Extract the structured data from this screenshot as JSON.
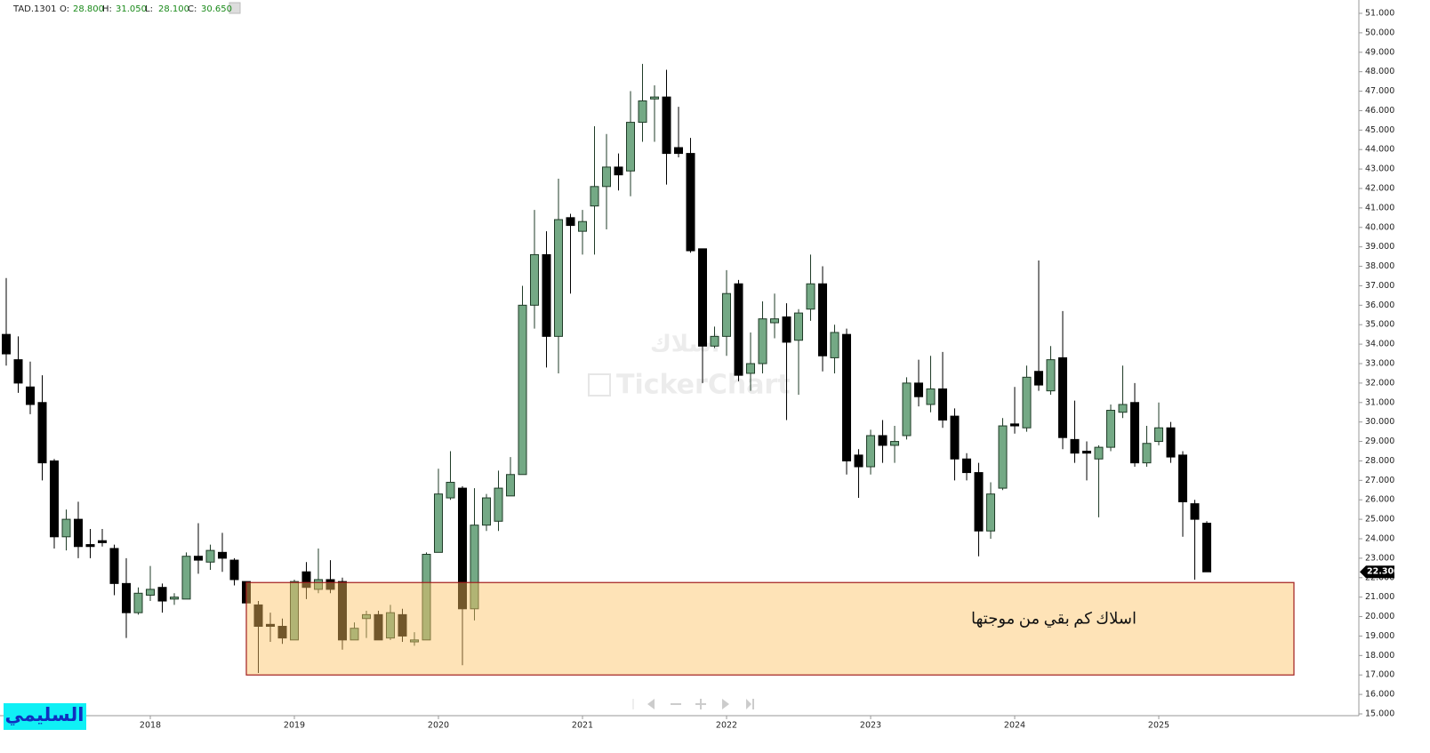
{
  "chart_data": {
    "type": "candlestick",
    "symbol": "TAD.1301",
    "ohlc_header": [
      {
        "name": "O:",
        "value": 28.8,
        "label": "28.800"
      },
      {
        "name": "H:",
        "value": 31.05,
        "label": "31.050"
      },
      {
        "name": "L:",
        "value": 28.1,
        "label": "28.100"
      },
      {
        "name": "C:",
        "value": 30.65,
        "label": "30.650"
      }
    ],
    "watermark_name": "اسلاك",
    "watermark": "TickerChart",
    "logo": "السليمي",
    "categories": [
      null,
      null,
      null,
      null,
      null,
      null,
      null,
      null,
      null,
      null,
      null,
      null,
      "2018",
      null,
      null,
      null,
      null,
      null,
      null,
      null,
      null,
      null,
      null,
      null,
      "2019",
      null,
      null,
      null,
      null,
      null,
      null,
      null,
      null,
      null,
      null,
      null,
      "2020",
      null,
      null,
      null,
      null,
      null,
      null,
      null,
      null,
      null,
      null,
      null,
      "2021",
      null,
      null,
      null,
      null,
      null,
      null,
      null,
      null,
      null,
      null,
      null,
      "2022",
      null,
      null,
      null,
      null,
      null,
      null,
      null,
      null,
      null,
      null,
      null,
      "2023",
      null,
      null,
      null,
      null,
      null,
      null,
      null,
      null,
      null,
      null,
      null,
      "2024",
      null,
      null,
      null,
      null,
      null,
      null,
      null,
      null,
      null,
      null,
      null,
      "2025",
      null,
      null,
      null,
      null
    ],
    "open": [
      34.5,
      33.2,
      31.8,
      31.0,
      28.0,
      24.1,
      25.0,
      23.7,
      23.9,
      23.5,
      21.7,
      20.2,
      21.1,
      21.5,
      20.9,
      20.9,
      23.1,
      22.8,
      23.3,
      22.9,
      21.8,
      20.6,
      19.6,
      19.5,
      18.8,
      22.3,
      21.4,
      21.9,
      21.8,
      18.8,
      19.9,
      20.1,
      18.9,
      20.1,
      18.7,
      18.8,
      23.3,
      26.1,
      26.6,
      20.4,
      24.7,
      24.9,
      26.2,
      27.3,
      36.0,
      38.6,
      34.4,
      40.5,
      39.8,
      41.1,
      42.1,
      43.1,
      42.9,
      45.4,
      46.6,
      46.7,
      44.1,
      43.8,
      38.9,
      33.9,
      34.4,
      37.1,
      32.5,
      33.0,
      35.1,
      35.4,
      34.2,
      35.8,
      37.1,
      33.3,
      34.5,
      28.3,
      27.7,
      29.3,
      28.8,
      29.3,
      32.0,
      30.9,
      31.7,
      30.3,
      28.1,
      27.4,
      24.4,
      26.6,
      29.9,
      29.7,
      32.6,
      31.6,
      33.3,
      29.1,
      28.5,
      28.1,
      28.7,
      30.5,
      31.0,
      27.9,
      29.0,
      29.7,
      28.3,
      25.8,
      24.8
    ],
    "high": [
      37.4,
      34.4,
      33.1,
      32.4,
      28.1,
      25.5,
      25.9,
      24.5,
      24.5,
      23.7,
      23.0,
      21.5,
      22.6,
      21.7,
      21.2,
      23.3,
      24.8,
      23.7,
      24.3,
      23.0,
      21.8,
      20.8,
      20.2,
      19.9,
      21.9,
      22.8,
      23.5,
      22.9,
      22.0,
      19.7,
      20.3,
      20.3,
      20.6,
      20.4,
      19.2,
      23.3,
      27.6,
      28.5,
      26.7,
      26.6,
      26.3,
      27.5,
      28.2,
      37.0,
      40.9,
      39.8,
      42.5,
      40.7,
      40.9,
      45.2,
      44.8,
      43.8,
      47.0,
      48.4,
      47.3,
      48.1,
      46.2,
      44.6,
      38.9,
      34.9,
      37.8,
      37.3,
      34.6,
      36.2,
      36.6,
      36.1,
      35.8,
      38.6,
      38.0,
      35.0,
      34.8,
      28.6,
      29.6,
      30.1,
      29.8,
      32.3,
      33.2,
      33.4,
      33.6,
      30.7,
      28.4,
      27.9,
      26.9,
      30.2,
      31.8,
      32.9,
      38.3,
      33.9,
      35.7,
      31.1,
      29.0,
      28.8,
      30.9,
      32.9,
      32.0,
      29.8,
      31.0,
      30.0,
      28.5,
      26.0,
      24.9
    ],
    "low": [
      32.9,
      31.5,
      30.4,
      27.0,
      23.5,
      23.4,
      23.0,
      23.0,
      23.6,
      21.1,
      18.9,
      20.1,
      20.8,
      20.2,
      20.6,
      20.9,
      22.2,
      22.4,
      22.3,
      21.6,
      20.4,
      17.1,
      18.7,
      18.6,
      18.8,
      20.9,
      21.2,
      21.2,
      18.3,
      18.8,
      18.9,
      18.8,
      18.8,
      18.7,
      18.5,
      18.8,
      23.3,
      26.0,
      17.5,
      19.8,
      24.4,
      24.4,
      26.2,
      27.3,
      34.8,
      32.8,
      32.5,
      36.6,
      38.6,
      38.6,
      39.9,
      41.9,
      41.6,
      44.4,
      44.4,
      42.2,
      43.6,
      38.7,
      32.0,
      33.8,
      33.4,
      32.1,
      31.6,
      32.5,
      34.3,
      30.1,
      31.4,
      35.2,
      32.6,
      32.5,
      27.3,
      26.1,
      27.3,
      27.9,
      27.9,
      29.1,
      30.8,
      30.5,
      29.7,
      27.0,
      27.0,
      23.1,
      24.0,
      26.5,
      29.4,
      29.5,
      31.6,
      31.4,
      28.6,
      27.9,
      27.0,
      25.1,
      28.5,
      30.2,
      27.7,
      27.7,
      28.8,
      27.9,
      24.1,
      21.9,
      22.3
    ],
    "close": [
      33.5,
      32.0,
      30.9,
      27.9,
      24.1,
      25.0,
      23.6,
      23.6,
      23.8,
      21.7,
      20.2,
      21.2,
      21.4,
      20.8,
      21.0,
      23.1,
      22.9,
      23.4,
      23.0,
      21.9,
      20.7,
      19.5,
      19.5,
      18.9,
      21.8,
      21.5,
      21.9,
      21.4,
      18.8,
      19.4,
      20.1,
      18.8,
      20.2,
      19.0,
      18.8,
      23.2,
      26.3,
      26.9,
      20.4,
      24.7,
      26.1,
      26.6,
      27.3,
      36.0,
      38.6,
      34.4,
      40.4,
      40.1,
      40.3,
      42.1,
      43.1,
      42.7,
      45.4,
      46.5,
      46.7,
      43.8,
      43.8,
      38.8,
      33.9,
      34.4,
      36.6,
      32.4,
      33.0,
      35.3,
      35.3,
      34.1,
      35.6,
      37.1,
      33.4,
      34.6,
      28.0,
      27.7,
      29.3,
      28.8,
      29.0,
      32.0,
      31.3,
      31.7,
      30.1,
      28.1,
      27.4,
      24.4,
      26.3,
      29.8,
      29.8,
      32.3,
      31.9,
      33.2,
      29.2,
      28.4,
      28.4,
      28.7,
      30.6,
      30.9,
      27.9,
      28.9,
      29.7,
      28.2,
      25.9,
      25.0,
      22.3
    ],
    "up_color": "#74a985",
    "up_edge": "#1f3b27",
    "down_color": "#000000",
    "last_price": {
      "value": 22.3,
      "label": "22.300"
    },
    "zone": {
      "low": 17.0,
      "high": 21.75,
      "color": "rgba(252,194,96,0.45)",
      "edge": "#a11d1d",
      "label": "اسلاك كم بقي من موجتها"
    },
    "ylim": [
      15,
      51
    ],
    "yticks": [
      {
        "value": 15,
        "label": "15.000"
      },
      {
        "value": 16,
        "label": "16.000"
      },
      {
        "value": 17,
        "label": "17.000"
      },
      {
        "value": 18,
        "label": "18.000"
      },
      {
        "value": 19,
        "label": "19.000"
      },
      {
        "value": 20,
        "label": "20.000"
      },
      {
        "value": 21,
        "label": "21.000"
      },
      {
        "value": 22,
        "label": "22.000"
      },
      {
        "value": 23,
        "label": "23.000"
      },
      {
        "value": 24,
        "label": "24.000"
      },
      {
        "value": 25,
        "label": "25.000"
      },
      {
        "value": 26,
        "label": "26.000"
      },
      {
        "value": 27,
        "label": "27.000"
      },
      {
        "value": 28,
        "label": "28.000"
      },
      {
        "value": 29,
        "label": "29.000"
      },
      {
        "value": 30,
        "label": "30.000"
      },
      {
        "value": 31,
        "label": "31.000"
      },
      {
        "value": 32,
        "label": "32.000"
      },
      {
        "value": 33,
        "label": "33.000"
      },
      {
        "value": 34,
        "label": "34.000"
      },
      {
        "value": 35,
        "label": "35.000"
      },
      {
        "value": 36,
        "label": "36.000"
      },
      {
        "value": 37,
        "label": "37.000"
      },
      {
        "value": 38,
        "label": "38.000"
      },
      {
        "value": 39,
        "label": "39.000"
      },
      {
        "value": 40,
        "label": "40.000"
      },
      {
        "value": 41,
        "label": "41.000"
      },
      {
        "value": 42,
        "label": "42.000"
      },
      {
        "value": 43,
        "label": "43.000"
      },
      {
        "value": 44,
        "label": "44.000"
      },
      {
        "value": 45,
        "label": "45.000"
      },
      {
        "value": 46,
        "label": "46.000"
      },
      {
        "value": 47,
        "label": "47.000"
      },
      {
        "value": 48,
        "label": "48.000"
      },
      {
        "value": 49,
        "label": "49.000"
      },
      {
        "value": 50,
        "label": "50.000"
      },
      {
        "value": 51,
        "label": "51.000"
      }
    ],
    "grid": false
  }
}
